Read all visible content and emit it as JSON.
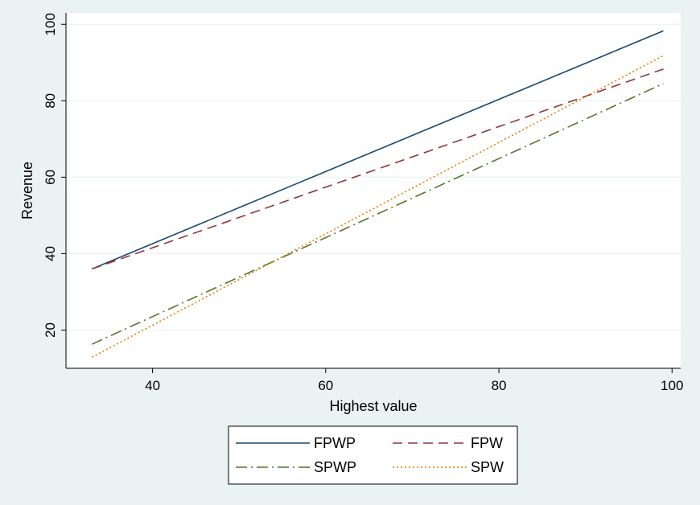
{
  "chart_data": {
    "type": "line",
    "title": "",
    "xlabel": "Highest value",
    "ylabel": "Revenue",
    "xlim": [
      30,
      101
    ],
    "ylim": [
      10,
      103
    ],
    "xticks": [
      40,
      60,
      80,
      100
    ],
    "yticks": [
      20,
      40,
      60,
      80,
      100
    ],
    "grid": true,
    "legend_position": "bottom",
    "series": [
      {
        "name": "FPWP",
        "x": [
          33,
          99
        ],
        "y": [
          36.0,
          98.3
        ],
        "color": "#1a476f",
        "dash": "solid"
      },
      {
        "name": "FPW",
        "x": [
          33,
          99
        ],
        "y": [
          36.0,
          88.3
        ],
        "color": "#90353b",
        "dash": "dash"
      },
      {
        "name": "SPWP",
        "x": [
          33,
          99
        ],
        "y": [
          16.3,
          84.5
        ],
        "color": "#55752f",
        "dash": "dashdot"
      },
      {
        "name": "SPW",
        "x": [
          33,
          99
        ],
        "y": [
          12.9,
          91.8
        ],
        "color": "#e37e00",
        "dash": "dot"
      }
    ]
  }
}
